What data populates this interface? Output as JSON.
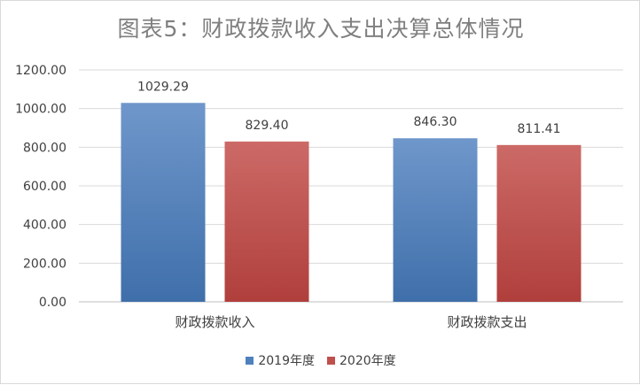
{
  "chart_data": {
    "type": "bar",
    "title": "图表5：财政拨款收入支出决算总体情况",
    "categories": [
      "财政拨款收入",
      "财政拨款支出"
    ],
    "series": [
      {
        "name": "2019年度",
        "values": [
          1029.29,
          846.3
        ],
        "labels": [
          "1029.29",
          "846.30"
        ],
        "color": "#4f81bd"
      },
      {
        "name": "2020年度",
        "values": [
          829.4,
          811.41
        ],
        "labels": [
          "829.40",
          "811.41"
        ],
        "color": "#c0504d"
      }
    ],
    "yticks": [
      "0.00",
      "200.00",
      "400.00",
      "600.00",
      "800.00",
      "1000.00",
      "1200.00"
    ],
    "ylim": [
      0,
      1200
    ],
    "grid": true,
    "legend_position": "bottom"
  }
}
